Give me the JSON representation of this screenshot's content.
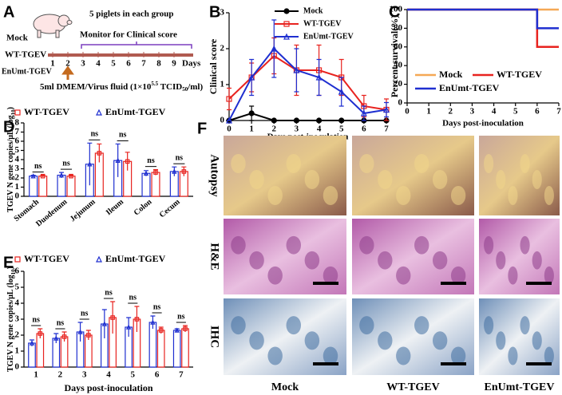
{
  "panel_labels": [
    "A",
    "B",
    "C",
    "D",
    "E",
    "F"
  ],
  "schematic": {
    "group_note": "5 piglets in each group",
    "monitor_note": "Monitor for Clinical score",
    "groups": [
      "Mock",
      "WT-TGEV",
      "EnUmt-TGEV"
    ],
    "days": [
      1,
      2,
      3,
      4,
      5,
      6,
      7,
      8,
      9
    ],
    "days_label": "Days",
    "inoculation": {
      "text": "5ml DMEM/Virus fluid (1×10",
      "exponent": "5.5",
      "unit": " TCID",
      "unit_sub": "50",
      "end": "/ml)"
    }
  },
  "chart_data": [
    {
      "type": "line",
      "xlabel": "Days post-inoculation",
      "ylabel": "Clinical score",
      "x": [
        0,
        1,
        2,
        3,
        4,
        5,
        6,
        7
      ],
      "xlim": [
        0,
        7
      ],
      "xticks": [
        0,
        1,
        2,
        3,
        4,
        5,
        6,
        7
      ],
      "ylim": [
        0,
        3
      ],
      "yticks": [
        0,
        1,
        2,
        3
      ],
      "legend": "upper center",
      "series": [
        {
          "name": "Mock",
          "color": "#000000",
          "values": [
            0,
            0.2,
            0,
            0,
            0,
            0,
            0,
            0
          ],
          "errors": [
            0,
            0.2,
            0,
            0,
            0,
            0,
            0,
            0
          ]
        },
        {
          "name": "WT-TGEV",
          "color": "#e8231f",
          "values": [
            0.6,
            1.2,
            1.8,
            1.4,
            1.4,
            1.2,
            0.4,
            0.3
          ],
          "errors": [
            0.3,
            0.4,
            0.5,
            0.7,
            0.7,
            0.5,
            0.3,
            0.3
          ]
        },
        {
          "name": "EnUmt-TGEV",
          "color": "#1f2fd0",
          "values": [
            0,
            1.2,
            2.0,
            1.4,
            1.2,
            0.8,
            0.2,
            0.3
          ],
          "errors": [
            0,
            0.5,
            0.8,
            0.6,
            0.5,
            0.4,
            0.2,
            0.2
          ]
        }
      ]
    },
    {
      "type": "step",
      "xlabel": "Days post-inoculation",
      "ylabel": "Percent survival(%)",
      "x": [
        0,
        1,
        2,
        3,
        4,
        5,
        6,
        7
      ],
      "xlim": [
        0,
        7
      ],
      "xticks": [
        0,
        1,
        2,
        3,
        4,
        5,
        6,
        7
      ],
      "ylim": [
        0,
        100
      ],
      "yticks": [
        0,
        20,
        40,
        60,
        80,
        100
      ],
      "legend": "lower center",
      "series": [
        {
          "name": "Mock",
          "color": "#f5a855",
          "values": [
            100,
            100,
            100,
            100,
            100,
            100,
            100,
            100
          ]
        },
        {
          "name": "WT-TGEV",
          "color": "#e8231f",
          "values": [
            100,
            100,
            100,
            100,
            100,
            100,
            60,
            60
          ]
        },
        {
          "name": "EnUmt-TGEV",
          "color": "#1f2fd0",
          "values": [
            100,
            100,
            100,
            100,
            100,
            100,
            80,
            80
          ]
        }
      ]
    },
    {
      "type": "bar",
      "ylabel": "TGEV N gene copies/μL (log",
      "ylabel_sub": "10",
      "ylabel_end": ")",
      "categories": [
        "Stomach",
        "Duodenum",
        "Jejunum",
        "Ileum",
        "Colon",
        "Cecum"
      ],
      "ylim": [
        0,
        8
      ],
      "yticks": [
        0,
        1,
        2,
        3,
        4,
        5,
        6,
        7,
        8
      ],
      "significance": [
        "ns",
        "ns",
        "ns",
        "ns",
        "ns",
        "ns"
      ],
      "series": [
        {
          "name": "WT-TGEV",
          "color": "#e8231f",
          "marker": "square",
          "values": [
            2.2,
            2.2,
            4.7,
            3.8,
            2.6,
            2.7
          ],
          "errors": [
            0.1,
            0.1,
            1.0,
            1.0,
            0.3,
            0.5
          ]
        },
        {
          "name": "EnUmt-TGEV",
          "color": "#1f2fd0",
          "marker": "triangle",
          "values": [
            2.2,
            2.3,
            3.5,
            3.9,
            2.5,
            2.7
          ],
          "errors": [
            0.1,
            0.3,
            2.3,
            1.8,
            0.3,
            0.5
          ]
        }
      ]
    },
    {
      "type": "bar",
      "xlabel": "Days post-inoculation",
      "ylabel": "TGEV N gene copies/μL (log",
      "ylabel_sub": "10",
      "ylabel_end": ")",
      "categories": [
        "1",
        "2",
        "3",
        "4",
        "5",
        "6",
        "7"
      ],
      "ylim": [
        0,
        6
      ],
      "yticks": [
        0,
        1,
        2,
        3,
        4,
        5,
        6
      ],
      "significance": [
        "ns",
        "ns",
        "ns",
        "ns",
        "ns",
        "ns",
        "ns"
      ],
      "series": [
        {
          "name": "WT-TGEV",
          "color": "#e8231f",
          "marker": "square",
          "values": [
            2.1,
            1.9,
            2.0,
            3.1,
            3.0,
            2.3,
            2.4
          ],
          "errors": [
            0.3,
            0.3,
            0.3,
            1.0,
            0.8,
            0.2,
            0.2
          ]
        },
        {
          "name": "EnUmt-TGEV",
          "color": "#1f2fd0",
          "marker": "triangle",
          "values": [
            1.5,
            1.8,
            2.2,
            2.7,
            2.5,
            2.8,
            2.3
          ],
          "errors": [
            0.2,
            0.3,
            0.6,
            0.9,
            0.6,
            0.4,
            0.1
          ]
        }
      ]
    }
  ],
  "histology": {
    "rows": [
      "Autopsy",
      "H&E",
      "IHC"
    ],
    "columns": [
      "Mock",
      "WT-TGEV",
      "EnUmt-TGEV"
    ]
  }
}
